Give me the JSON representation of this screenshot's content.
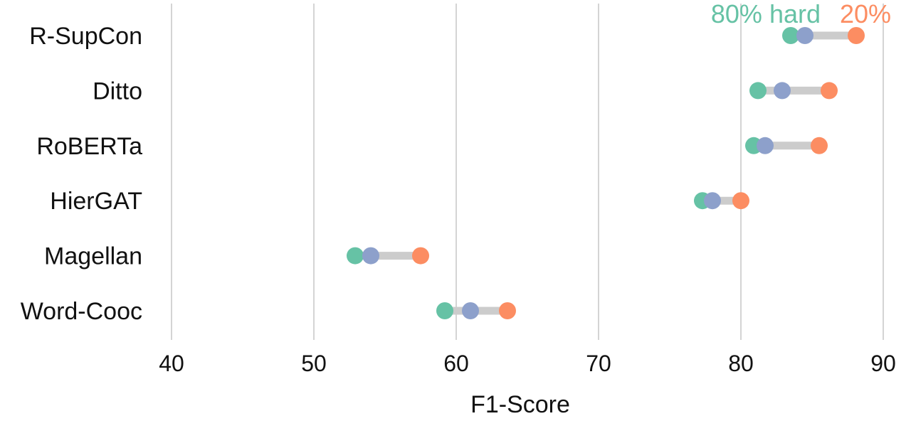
{
  "chart_data": {
    "type": "dumbbell",
    "xlabel": "F1-Score",
    "xlim": [
      40,
      90
    ],
    "x_ticks": [
      "40",
      "50",
      "60",
      "70",
      "80",
      "90"
    ],
    "grid": true,
    "legend": {
      "placement": "top-right",
      "entries": [
        {
          "label": "80% hard",
          "color": "#66c2a5"
        },
        {
          "label": "20%",
          "color": "#fc8d62"
        }
      ]
    },
    "categories": [
      "R-SupCon",
      "Ditto",
      "RoBERTa",
      "HierGAT",
      "Magellan",
      "Word-Cooc"
    ],
    "series": [
      {
        "key": "hard80",
        "color": "#66c2a5",
        "values": [
          83.5,
          81.2,
          80.9,
          77.3,
          52.9,
          59.2
        ]
      },
      {
        "key": "middle",
        "color": "#8da0cb",
        "values": [
          84.5,
          82.9,
          81.7,
          78.0,
          54.0,
          61.0
        ]
      },
      {
        "key": "hard20",
        "color": "#fc8d62",
        "values": [
          88.1,
          86.2,
          85.5,
          80.0,
          57.5,
          63.6
        ]
      }
    ],
    "connector_color": "#cccccc"
  }
}
